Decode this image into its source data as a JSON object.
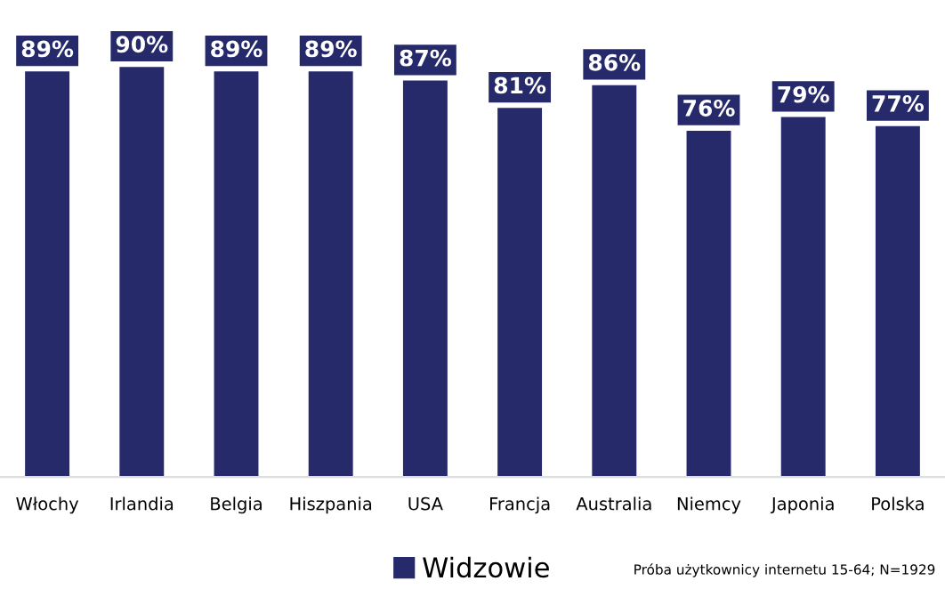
{
  "chart_data": {
    "type": "bar",
    "categories": [
      "Włochy",
      "Irlandia",
      "Belgia",
      "Hiszpania",
      "USA",
      "Francja",
      "Australia",
      "Niemcy",
      "Japonia",
      "Polska"
    ],
    "series": [
      {
        "name": "Widzowie",
        "color": "#262a6b",
        "values": [
          89,
          90,
          89,
          89,
          87,
          81,
          86,
          76,
          79,
          77
        ],
        "value_labels": [
          "89%",
          "90%",
          "89%",
          "89%",
          "87%",
          "81%",
          "86%",
          "76%",
          "79%",
          "77%"
        ]
      }
    ],
    "legend": "bottom",
    "grid": false,
    "annotations": [
      "Próba użytkownicy internetu 15-64; N=1929"
    ]
  }
}
